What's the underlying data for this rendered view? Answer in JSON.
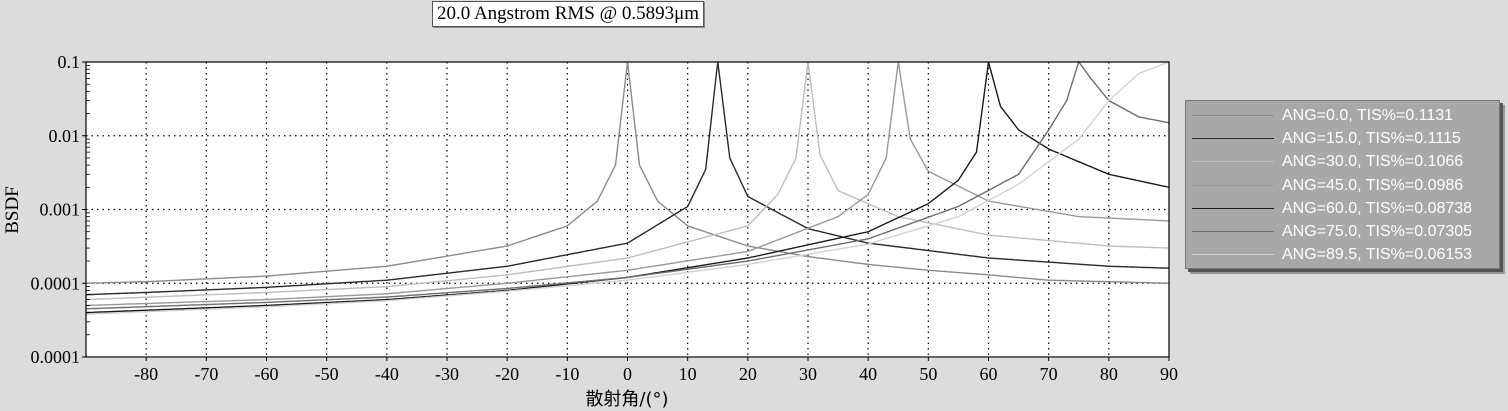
{
  "title": "20.0 Angstrom RMS @ 0.5893μm",
  "chart_data": {
    "type": "line",
    "title": "20.0 Angstrom RMS @ 0.5893μm",
    "xlabel": "散射角/(°)",
    "ylabel": "BSDF",
    "x_ticks": [
      "-80",
      "-70",
      "-60",
      "-50",
      "-40",
      "-30",
      "-20",
      "-10",
      "0",
      "10",
      "20",
      "30",
      "40",
      "50",
      "60",
      "70",
      "80",
      "90"
    ],
    "y_ticks": [
      "0.1",
      "0.01",
      "0.001",
      "0.0001",
      "0.0001"
    ],
    "xlim": [
      -90,
      90
    ],
    "ylim": [
      1e-05,
      0.1
    ],
    "y_scale": "log",
    "grid": true,
    "legend_position": "right",
    "series": [
      {
        "name": "ANG=0.0, TIS%=0.1131",
        "color": "#8a8a8a",
        "peak": 0,
        "x": [
          -90,
          -80,
          -60,
          -40,
          -20,
          -10,
          -5,
          -2,
          0,
          2,
          5,
          10,
          20,
          30,
          40,
          50,
          60,
          70,
          80,
          90
        ],
        "y": [
          0.0001,
          0.000105,
          0.000125,
          0.00017,
          0.00032,
          0.0006,
          0.0013,
          0.004,
          0.1,
          0.004,
          0.0013,
          0.0006,
          0.00032,
          0.00023,
          0.00018,
          0.00015,
          0.00013,
          0.00011,
          0.000105,
          0.0001
        ]
      },
      {
        "name": "ANG=15.0, TIS%=0.1115",
        "color": "#2a2a2a",
        "peak": 15,
        "x": [
          -90,
          -80,
          -60,
          -40,
          -20,
          0,
          10,
          13,
          15,
          17,
          20,
          30,
          40,
          60,
          80,
          90
        ],
        "y": [
          7e-05,
          7.5e-05,
          8.8e-05,
          0.00011,
          0.00017,
          0.00035,
          0.0011,
          0.0035,
          0.1,
          0.005,
          0.0015,
          0.00055,
          0.00035,
          0.00022,
          0.00017,
          0.00016
        ]
      },
      {
        "name": "ANG=30.0, TIS%=0.1066",
        "color": "#bdbdbd",
        "peak": 30,
        "x": [
          -90,
          -60,
          -40,
          -20,
          0,
          20,
          25,
          28,
          30,
          32,
          35,
          45,
          60,
          80,
          90
        ],
        "y": [
          6e-05,
          7.5e-05,
          9e-05,
          0.00013,
          0.00022,
          0.0006,
          0.0016,
          0.005,
          0.1,
          0.0055,
          0.0018,
          0.0008,
          0.00045,
          0.00032,
          0.0003
        ]
      },
      {
        "name": "ANG=45.0, TIS%=0.0986",
        "color": "#999999",
        "peak": 45,
        "x": [
          -90,
          -60,
          -40,
          -20,
          0,
          20,
          35,
          40,
          43,
          45,
          47,
          50,
          60,
          75,
          90
        ],
        "y": [
          5e-05,
          6e-05,
          7.2e-05,
          0.0001,
          0.00015,
          0.00027,
          0.0008,
          0.0016,
          0.005,
          0.1,
          0.009,
          0.0033,
          0.0013,
          0.0008,
          0.0007
        ]
      },
      {
        "name": "ANG=60.0, TIS%=0.08738",
        "color": "#1a1a1a",
        "peak": 60,
        "x": [
          -90,
          -60,
          -40,
          -20,
          0,
          20,
          40,
          50,
          55,
          58,
          60,
          62,
          65,
          70,
          80,
          90
        ],
        "y": [
          4e-05,
          5e-05,
          6e-05,
          8e-05,
          0.00012,
          0.00022,
          0.0005,
          0.0012,
          0.0025,
          0.006,
          0.1,
          0.025,
          0.012,
          0.0066,
          0.003,
          0.002
        ]
      },
      {
        "name": "ANG=75.0, TIS%=0.07305",
        "color": "#6e6e6e",
        "peak": 75,
        "x": [
          -90,
          -60,
          -40,
          -20,
          0,
          20,
          40,
          55,
          65,
          70,
          73,
          75,
          77,
          80,
          85,
          90
        ],
        "y": [
          4.5e-05,
          5.5e-05,
          6.5e-05,
          8.5e-05,
          0.00012,
          0.0002,
          0.0004,
          0.0011,
          0.003,
          0.012,
          0.03,
          0.1,
          0.06,
          0.03,
          0.018,
          0.015
        ]
      },
      {
        "name": "ANG=89.5, TIS%=0.06153",
        "color": "#d2d2d2",
        "peak": 89.5,
        "x": [
          -90,
          -60,
          -40,
          -20,
          0,
          20,
          40,
          55,
          65,
          75,
          80,
          85,
          90
        ],
        "y": [
          3.8e-05,
          4.8e-05,
          5.8e-05,
          7.8e-05,
          0.00011,
          0.00018,
          0.00034,
          0.0008,
          0.0022,
          0.009,
          0.03,
          0.07,
          0.1
        ]
      }
    ]
  },
  "legend": [
    "ANG=0.0, TIS%=0.1131",
    "ANG=15.0, TIS%=0.1115",
    "ANG=30.0, TIS%=0.1066",
    "ANG=45.0, TIS%=0.0986",
    "ANG=60.0, TIS%=0.08738",
    "ANG=75.0, TIS%=0.07305",
    "ANG=89.5, TIS%=0.06153"
  ]
}
